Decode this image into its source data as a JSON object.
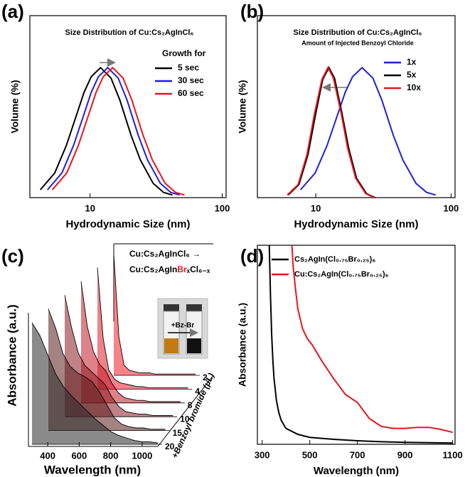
{
  "chart_data": [
    {
      "type": "line",
      "panel_label": "(a)",
      "title": "Size Distribution of Cu:Cs₂AgInCl₆",
      "xlabel": "Hydrodynamic Size (nm)",
      "ylabel": "Volume (%)",
      "xscale": "log",
      "xlim": [
        3.5,
        107
      ],
      "xticks": [
        10,
        100
      ],
      "ylim": [
        0,
        140
      ],
      "legend": "upper right",
      "legend_title": "Growth for",
      "series": [
        {
          "name": "5 sec",
          "color": "#000000",
          "x": [
            4.2,
            5.4,
            6.6,
            7.8,
            9,
            10.2,
            12,
            14.4,
            16.8,
            20.4,
            24,
            30,
            36,
            42
          ],
          "values": [
            6,
            19,
            40,
            62,
            81,
            93,
            100,
            92,
            75,
            48,
            29,
            11,
            4,
            2
          ]
        },
        {
          "name": "30 sec",
          "color": "#1f1fdc",
          "x": [
            4.76,
            6.12,
            7.48,
            8.84,
            10.2,
            11.56,
            13.6,
            16.32,
            19.04,
            23.12,
            27.2,
            34,
            40.8,
            47.6
          ],
          "values": [
            6,
            19,
            40,
            62,
            81,
            93,
            100,
            92,
            75,
            48,
            29,
            11,
            4,
            2
          ]
        },
        {
          "name": "60 sec",
          "color": "#e8141e",
          "x": [
            5.18,
            6.66,
            8.14,
            9.62,
            11.1,
            12.58,
            14.8,
            17.76,
            20.72,
            25.16,
            29.6,
            37,
            44.4,
            51.8
          ],
          "values": [
            6,
            19,
            40,
            62,
            81,
            93,
            100,
            92,
            75,
            48,
            29,
            11,
            4,
            2
          ]
        }
      ]
    },
    {
      "type": "line",
      "panel_label": "(b)",
      "title": "Size Distribution of Cu:Cs₂AgInCl₆",
      "subtitle": "Amount of Injected Benzoyl Chloride",
      "xlabel": "Hydrodynamic Size (nm)",
      "ylabel": "Volume (%)",
      "xscale": "log",
      "xlim": [
        3.7,
        107
      ],
      "xticks": [
        10,
        100
      ],
      "ylim": [
        0,
        140
      ],
      "legend": "upper right",
      "series": [
        {
          "name": "1x",
          "color": "#1f1fdc",
          "x": [
            7.7,
            9.9,
            12.1,
            14.3,
            16.5,
            18.7,
            22,
            26.4,
            30.8,
            37.4,
            44,
            55,
            66,
            77
          ],
          "values": [
            6,
            19,
            40,
            62,
            81,
            93,
            100,
            92,
            75,
            48,
            29,
            11,
            4,
            2
          ]
        },
        {
          "name": "5x",
          "color": "#000000",
          "x": [
            6.25,
            7.5,
            8.75,
            10,
            11.25,
            12.5,
            13.75,
            15.6,
            17.5,
            20,
            23.75,
            27.5
          ],
          "values": [
            2,
            10,
            33,
            65,
            91,
            100,
            92,
            65,
            38,
            15,
            3,
            0
          ]
        },
        {
          "name": "10x",
          "color": "#e8141e",
          "x": [
            6.15,
            7.4,
            8.6,
            9.8,
            11.1,
            12.3,
            13.5,
            15.4,
            17.2,
            19.7,
            23.4,
            27.1
          ],
          "values": [
            2,
            10,
            33,
            65,
            91,
            100,
            92,
            65,
            38,
            15,
            3,
            0
          ]
        }
      ]
    },
    {
      "type": "waterfall",
      "panel_label": "(c)",
      "xlabel": "Wavelength (nm)",
      "ylabel": "Absorbance (a.u.)",
      "zlabel": "+Benzoyl bromide (μL)",
      "xlim": [
        300,
        1100
      ],
      "xticks": [
        400,
        600,
        800,
        1000
      ],
      "inset_line1": "Cu:Cs₂AgInCl₆ →",
      "inset_line2": [
        "Cu:Cs₂AgIn",
        "Br",
        "ₓCl₆₋ₓ"
      ],
      "inset_highlight": "#e8141e",
      "inset_photo_label": "+Bz-Br",
      "x": [
        300,
        350,
        400,
        450,
        500,
        550,
        600,
        650,
        700,
        750,
        800,
        850,
        900,
        950,
        1000,
        1050,
        1100
      ],
      "series": [
        {
          "name": "2",
          "color": "#f01e28",
          "values": [
            95,
            30,
            8,
            4,
            3,
            2,
            2,
            2,
            1,
            1,
            1,
            1,
            1,
            1,
            1,
            1,
            1
          ]
        },
        {
          "name": "4",
          "color": "#e01e28",
          "values": [
            95,
            40,
            15,
            8,
            5,
            4,
            3,
            2,
            2,
            1,
            1,
            1,
            1,
            1,
            1,
            1,
            1
          ]
        },
        {
          "name": "8",
          "color": "#c41a26",
          "values": [
            95,
            60,
            40,
            30,
            25,
            15,
            8,
            4,
            3,
            2,
            2,
            1,
            1,
            1,
            1,
            1,
            1
          ]
        },
        {
          "name": "10",
          "color": "#8c1c22",
          "values": [
            95,
            70,
            50,
            40,
            35,
            30,
            25,
            15,
            8,
            4,
            3,
            2,
            2,
            1,
            1,
            1,
            1
          ]
        },
        {
          "name": "15",
          "color": "#5a1e1e",
          "values": [
            95,
            80,
            60,
            50,
            45,
            42,
            38,
            30,
            20,
            10,
            5,
            3,
            2,
            2,
            1,
            1,
            1
          ]
        },
        {
          "name": "20",
          "color": "#2a2a2a",
          "values": [
            95,
            85,
            70,
            55,
            45,
            38,
            32,
            26,
            20,
            15,
            10,
            7,
            5,
            3,
            2,
            2,
            1
          ]
        }
      ]
    },
    {
      "type": "line",
      "panel_label": "(d)",
      "xlabel": "Wavelength (nm)",
      "ylabel": "Absorbance (a.u.)",
      "xscale": "linear",
      "xlim": [
        280,
        1110
      ],
      "xticks": [
        300,
        500,
        700,
        900,
        1100
      ],
      "ylim": [
        0,
        100
      ],
      "legend": "upper left",
      "series": [
        {
          "name": "Cs₂AgIn(Cl₀.₇₅Br₀.₂₅)₆",
          "color": "#000000",
          "x": [
            330,
            335,
            340,
            345,
            350,
            360,
            370,
            380,
            400,
            450,
            500,
            600,
            700,
            800,
            900,
            1000,
            1100
          ],
          "values": [
            100,
            75,
            55,
            42,
            33,
            22,
            16,
            12,
            8,
            5,
            3.5,
            2.5,
            1.8,
            1.3,
            1,
            0.8,
            0.6
          ]
        },
        {
          "name": "Cu:Cs₂AgIn(Cl₀.₇₅Br₀.₂₅)₆",
          "color": "#e8141e",
          "x": [
            425,
            430,
            440,
            450,
            470,
            490,
            510,
            530,
            550,
            600,
            650,
            700,
            750,
            800,
            850,
            900,
            950,
            1000,
            1050,
            1100
          ],
          "values": [
            100,
            90,
            78,
            68,
            58,
            53,
            50,
            46,
            42,
            33,
            25,
            21,
            13,
            9,
            8,
            8,
            8.5,
            8.5,
            7.5,
            6
          ]
        }
      ]
    }
  ]
}
